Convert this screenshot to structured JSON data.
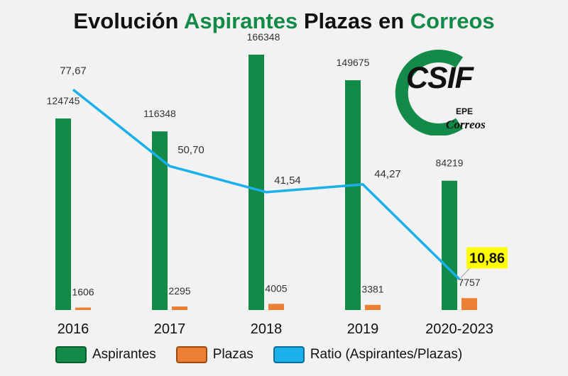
{
  "title": {
    "part1": "Evolución",
    "part2": "Aspirantes",
    "part3": "Plazas en",
    "part4": "Correos"
  },
  "logo": {
    "text": "CSIF",
    "sub1": "EPE",
    "sub2": "Correos"
  },
  "colors": {
    "aspirantes": "#138a47",
    "plazas": "#ec7f33",
    "ratio": "#1ab0ea",
    "highlight": "#ffff00"
  },
  "chart_data": {
    "type": "bar",
    "categories": [
      "2016",
      "2017",
      "2018",
      "2019",
      "2020-2023"
    ],
    "series": [
      {
        "name": "Aspirantes",
        "type": "bar",
        "values": [
          124745,
          116348,
          166348,
          149675,
          84219
        ],
        "labels": [
          "124745",
          "116348",
          "166348",
          "149675",
          "84219"
        ]
      },
      {
        "name": "Plazas",
        "type": "bar",
        "values": [
          1606,
          2295,
          4005,
          3381,
          7757
        ],
        "labels": [
          "1606",
          "2295",
          "4005",
          "3381",
          "7757"
        ]
      },
      {
        "name": "Ratio (Aspirantes/Plazas)",
        "type": "line",
        "values": [
          77.67,
          50.7,
          41.54,
          44.27,
          10.86
        ],
        "labels": [
          "77,67",
          "50,70",
          "41,54",
          "44,27",
          "10,86"
        ]
      }
    ],
    "highlighted_label": "10,86",
    "bar_ylim": [
      0,
      166348
    ],
    "line_ylim": [
      0,
      80
    ],
    "legend_position": "bottom",
    "grid": false
  }
}
